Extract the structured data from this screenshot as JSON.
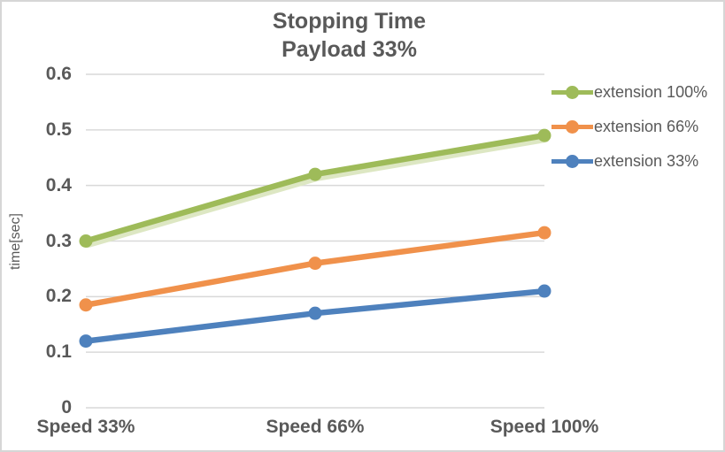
{
  "chart_data": {
    "type": "line",
    "title": "Stopping Time",
    "subtitle": "Payload 33%",
    "title_lines": [
      "Stopping Time",
      "Payload 33%"
    ],
    "categories": [
      "Speed 33%",
      "Speed 66%",
      "Speed 100%"
    ],
    "series": [
      {
        "name": "extension 100%",
        "color": "#9EBB59",
        "shadow_color": "#DDE7C3",
        "values": [
          0.3,
          0.42,
          0.49
        ]
      },
      {
        "name": "extension 66%",
        "color": "#F0914B",
        "values": [
          0.185,
          0.26,
          0.315
        ]
      },
      {
        "name": "extension 33%",
        "color": "#4E81BD",
        "values": [
          0.12,
          0.17,
          0.21
        ]
      }
    ],
    "xlabel": "",
    "ylabel": "time[sec]",
    "ylim": [
      0,
      0.6
    ],
    "y_ticks": [
      0,
      0.1,
      0.2,
      0.3,
      0.4,
      0.5,
      0.6
    ],
    "y_tick_labels": [
      "0",
      "0.1",
      "0.2",
      "0.3",
      "0.4",
      "0.5",
      "0.6"
    ],
    "grid": true,
    "legend_position": "right",
    "legend": [
      "extension 100%",
      "extension 66%",
      "extension 33%"
    ]
  },
  "colors": {
    "text": "#595959",
    "gridline": "#D9D9D9",
    "background": "#FFFFFF",
    "frame_border": "#D6D6D6"
  }
}
